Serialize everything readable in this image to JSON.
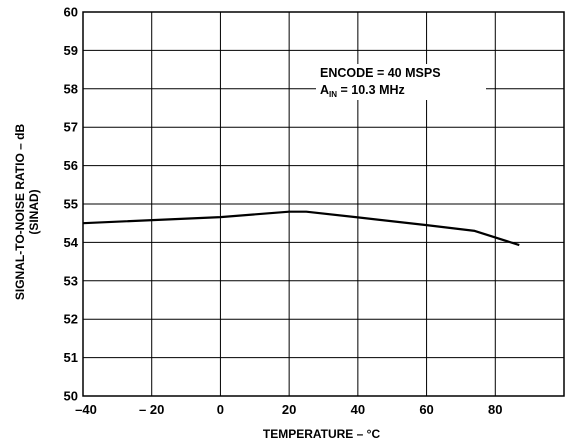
{
  "chart_data": {
    "type": "line",
    "title": "",
    "xlabel": "TEMPERATURE – °C",
    "ylabel_line1": "SIGNAL-TO-NOISE RATIO – dB",
    "ylabel_line2": "(SINAD)",
    "xlim": [
      -40,
      100
    ],
    "ylim": [
      50,
      60
    ],
    "xticks": [
      -40,
      -20,
      0,
      20,
      40,
      60,
      80
    ],
    "xtick_labels": [
      "–40",
      "– 20",
      "0",
      "20",
      "40",
      "60",
      "80"
    ],
    "yticks": [
      50,
      51,
      52,
      53,
      54,
      55,
      56,
      57,
      58,
      59,
      60
    ],
    "ytick_labels": [
      "50",
      "51",
      "52",
      "53",
      "54",
      "55",
      "56",
      "57",
      "58",
      "59",
      "60"
    ],
    "grid": true,
    "annotation": {
      "line1": "ENCODE = 40 MSPS",
      "line2_main": "A",
      "line2_sub": "IN",
      "line2_rest": " = 10.3 MHz"
    },
    "series": [
      {
        "x": [
          -40,
          0,
          20,
          25,
          40,
          60,
          74,
          87
        ],
        "y": [
          54.5,
          54.66,
          54.8,
          54.8,
          54.65,
          54.45,
          54.3,
          53.93
        ]
      }
    ]
  }
}
